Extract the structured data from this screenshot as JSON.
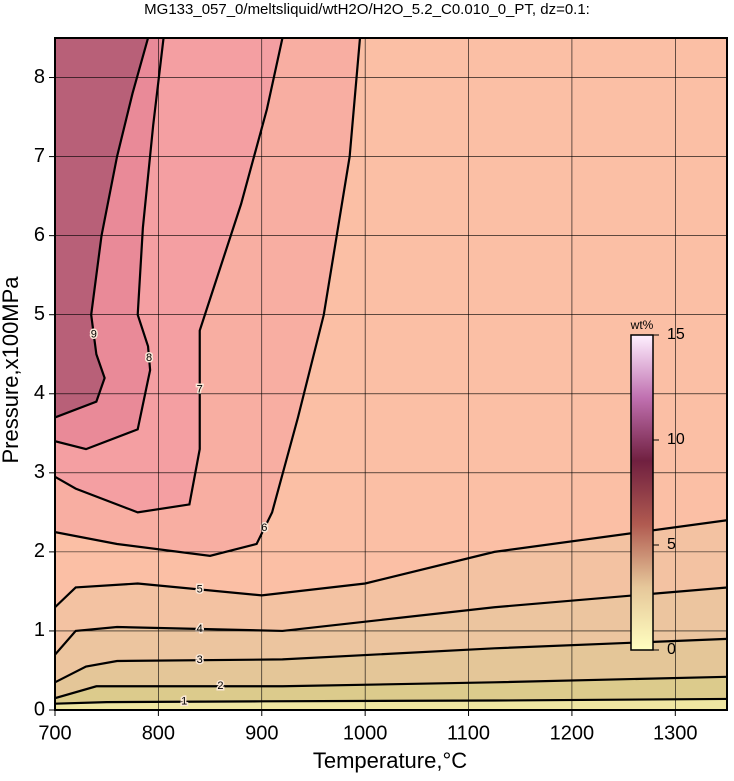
{
  "chart_data": {
    "type": "contour",
    "title": "MG133_057_0/meltsliquid/wtH2O/H2O_5.2_C0.010_0_PT, dz=0.1:",
    "xlabel": "Temperature,°C",
    "ylabel": "Pressure,x100MPa",
    "xlim": [
      700,
      1350
    ],
    "ylim": [
      0,
      8.5
    ],
    "xticks": [
      700,
      800,
      900,
      1000,
      1100,
      1200,
      1300
    ],
    "yticks": [
      0,
      1,
      2,
      3,
      4,
      5,
      6,
      7,
      8
    ],
    "grid": true,
    "background": "#efe6a2",
    "series": [
      {
        "name": "1",
        "color": "#dccb8c",
        "x": [
          700,
          750,
          900,
          1125,
          1350
        ],
        "y": [
          0.08,
          0.1,
          0.11,
          0.12,
          0.14
        ]
      },
      {
        "name": "2",
        "color": "#e4c698",
        "x": [
          700,
          740,
          800,
          920,
          1125,
          1350
        ],
        "y": [
          0.15,
          0.3,
          0.3,
          0.3,
          0.35,
          0.42
        ]
      },
      {
        "name": "3",
        "color": "#ecc59f",
        "x": [
          700,
          730,
          760,
          920,
          1125,
          1350
        ],
        "y": [
          0.35,
          0.55,
          0.62,
          0.64,
          0.78,
          0.9
        ]
      },
      {
        "name": "4",
        "color": "#f3c2a2",
        "x": [
          700,
          720,
          760,
          920,
          1125,
          1350
        ],
        "y": [
          0.7,
          1.0,
          1.05,
          1.0,
          1.3,
          1.55
        ]
      },
      {
        "name": "5",
        "color": "#fbbfa5",
        "x": [
          700,
          720,
          780,
          900,
          1000,
          1125,
          1350
        ],
        "y": [
          1.3,
          1.55,
          1.6,
          1.45,
          1.6,
          2.0,
          2.4
        ]
      },
      {
        "name": "6",
        "color": "#f8aea2",
        "x": [
          700,
          760,
          850,
          895,
          910,
          935,
          960,
          985,
          995
        ],
        "y": [
          2.25,
          2.1,
          1.95,
          2.1,
          2.5,
          3.7,
          5.0,
          7.0,
          8.5
        ]
      },
      {
        "name": "7",
        "color": "#f49fa2",
        "x": [
          700,
          720,
          780,
          830,
          840,
          840,
          850,
          880,
          905,
          920
        ],
        "y": [
          2.95,
          2.8,
          2.5,
          2.6,
          3.3,
          4.8,
          5.2,
          6.4,
          7.6,
          8.5
        ]
      },
      {
        "name": "8",
        "color": "#e98a98",
        "x": [
          700,
          730,
          780,
          792,
          790,
          780,
          785,
          795,
          805
        ],
        "y": [
          3.4,
          3.3,
          3.55,
          4.3,
          4.6,
          5.0,
          6.1,
          7.4,
          8.5
        ]
      },
      {
        "name": "9",
        "color": "#b86078",
        "x": [
          700,
          740,
          748,
          740,
          735,
          745,
          760,
          775,
          790
        ],
        "y": [
          3.7,
          3.9,
          4.2,
          4.5,
          5.0,
          6.0,
          7.0,
          7.8,
          8.5
        ]
      }
    ],
    "colorbar": {
      "label": "wt%",
      "lim": [
        0,
        15
      ],
      "ticks": [
        0,
        5,
        10,
        15
      ],
      "colors": [
        "#ffffc0",
        "#e6c79a",
        "#b05a50",
        "#702040",
        "#c070b0",
        "#fff0ff"
      ]
    }
  }
}
